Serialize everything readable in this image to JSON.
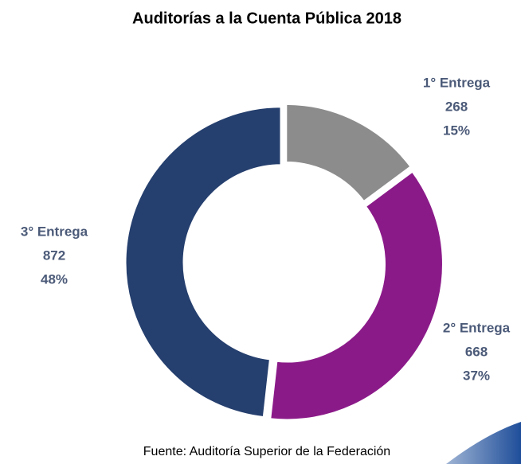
{
  "chart_data": {
    "type": "pie",
    "donut": true,
    "title": "Auditorías a la Cuenta Pública 2018",
    "categories": [
      "1° Entrega",
      "2° Entrega",
      "3° Entrega"
    ],
    "values": [
      268,
      668,
      872
    ],
    "percent_labels": [
      "15%",
      "37%",
      "48%"
    ],
    "colors": [
      "#8c8c8c",
      "#8b1a89",
      "#253f6e"
    ],
    "source": "Fuente: Auditoría Superior de la Federación"
  }
}
